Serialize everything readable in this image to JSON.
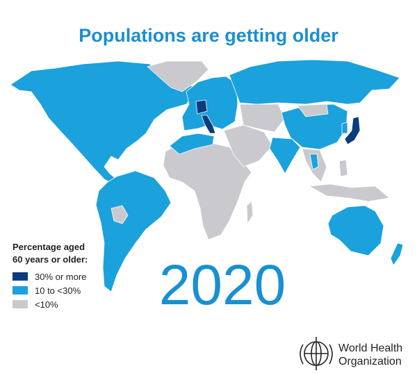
{
  "title": "Populations are getting older",
  "year": "2020",
  "legend": {
    "title": [
      "Percentage aged",
      "60 years or older:"
    ],
    "items": [
      {
        "label": "30% or more",
        "color": "#0b3c7d"
      },
      {
        "label": "10 to <30%",
        "color": "#1ba1dc"
      },
      {
        "label": "<10%",
        "color": "#c9c9ce"
      }
    ]
  },
  "logo": {
    "lines": [
      "World Health",
      "Organization"
    ]
  }
}
